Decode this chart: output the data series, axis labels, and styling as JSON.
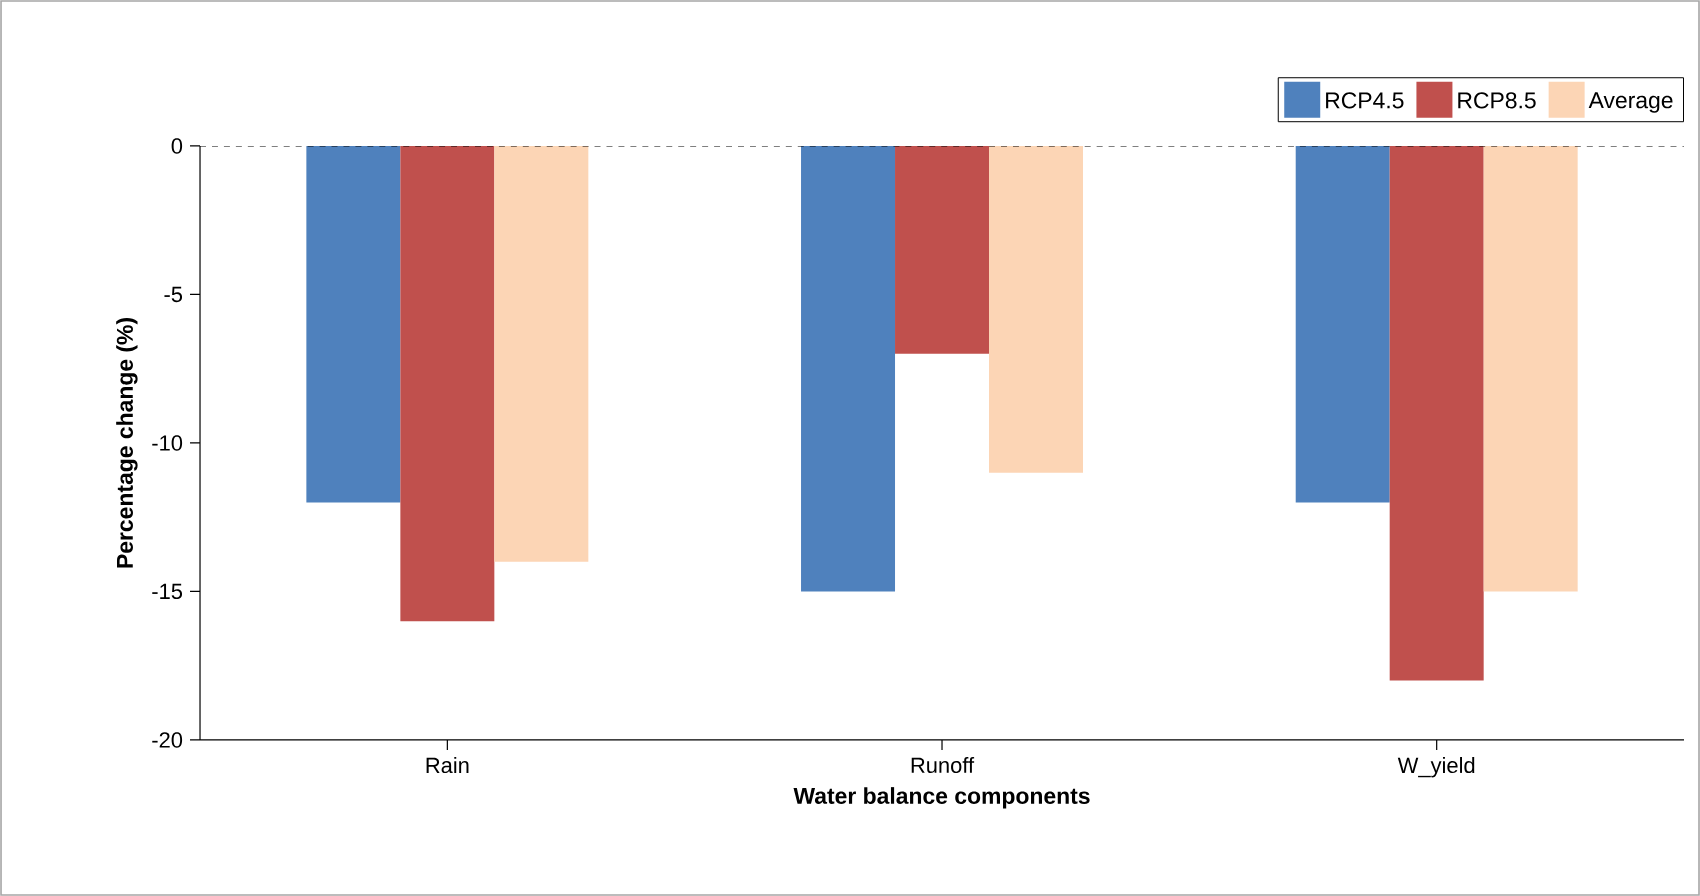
{
  "chart_data": {
    "type": "bar",
    "xlabel": "Water balance components",
    "ylabel": "Percentage change (%)",
    "categories": [
      "Rain",
      "Runoff",
      "W_yield"
    ],
    "series": [
      {
        "name": "RCP4.5",
        "color": "#4f81bd",
        "values": [
          -12,
          -15,
          -12
        ]
      },
      {
        "name": "RCP8.5",
        "color": "#c0504d",
        "values": [
          -16,
          -7,
          -18
        ]
      },
      {
        "name": "Average",
        "color": "#fcd5b5",
        "values": [
          -14,
          -11,
          -15
        ]
      }
    ],
    "ylim": [
      -20,
      0
    ],
    "yticks": [
      -20,
      -15,
      -10,
      -5,
      0
    ],
    "ref_lines": [
      {
        "axis": "y",
        "value": 0,
        "color": "#000000",
        "line_style": "dashed"
      }
    ],
    "grid": false,
    "legend": "top right"
  }
}
